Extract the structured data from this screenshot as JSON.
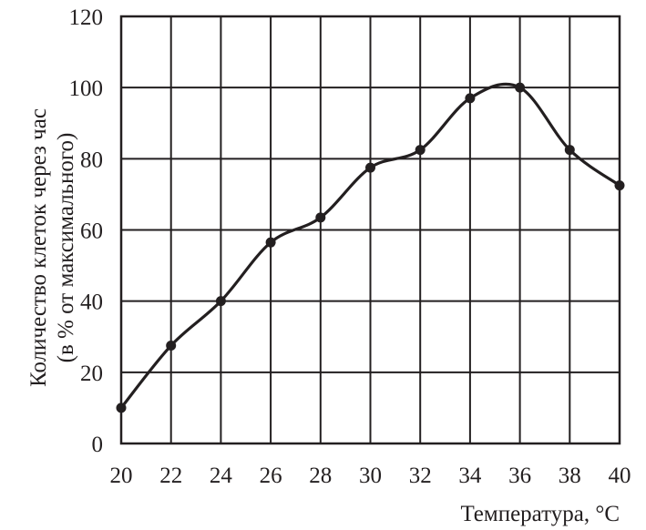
{
  "chart_data": {
    "type": "line",
    "title": "",
    "xlabel": "Температура, °C",
    "ylabel": [
      "Количество клеток через час",
      "(в % от максимального)"
    ],
    "xlim": [
      20,
      40
    ],
    "ylim": [
      0,
      120
    ],
    "x_ticks": [
      "20",
      "22",
      "24",
      "26",
      "28",
      "30",
      "32",
      "34",
      "36",
      "38",
      "40"
    ],
    "y_ticks": [
      "0",
      "20",
      "40",
      "60",
      "80",
      "100",
      "120"
    ],
    "grid": true,
    "series": [
      {
        "x": [
          20,
          22,
          24,
          26,
          28,
          30,
          32,
          34,
          36,
          38,
          40
        ],
        "values": [
          10,
          27.5,
          40,
          56.5,
          63.5,
          77.5,
          82.5,
          97,
          100,
          82.5,
          72.5
        ]
      }
    ],
    "colors": {
      "ink": "#231f20",
      "background": "#ffffff"
    }
  }
}
